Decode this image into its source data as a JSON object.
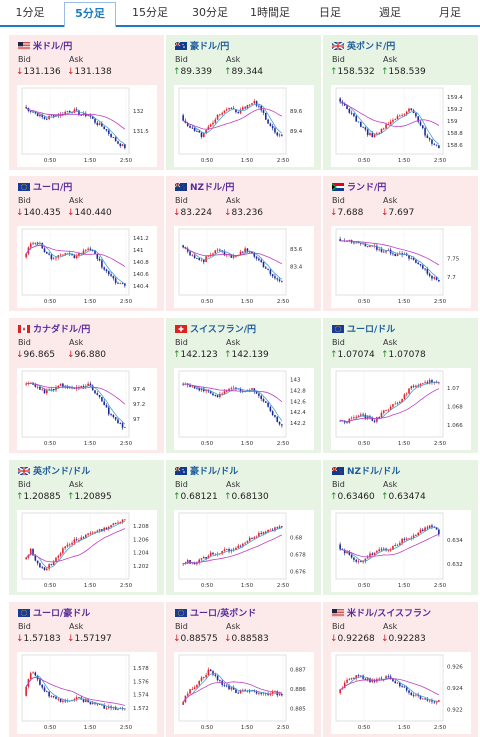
{
  "tabs": [
    {
      "label": "1分足",
      "active": false
    },
    {
      "label": "5分足",
      "active": true
    },
    {
      "label": "15分足",
      "active": false
    },
    {
      "label": "30分足",
      "active": false
    },
    {
      "label": "1時間足",
      "active": false
    },
    {
      "label": "日足",
      "active": false
    },
    {
      "label": "週足",
      "active": false
    },
    {
      "label": "月足",
      "active": false
    }
  ],
  "bid_label": "Bid",
  "ask_label": "Ask",
  "x_ticks": [
    "0:50",
    "1:50",
    "2:50"
  ],
  "colors": {
    "up": "#e0202a",
    "down": "#1a2a9a",
    "ma_short": "#4aa0d0",
    "ma_long": "#c040c0",
    "tab_accent": "#1a7dc4"
  },
  "pairs": [
    {
      "name": "米ドル/円",
      "flag": "us",
      "bg": "red",
      "bid_dir": "down",
      "bid": "131.136",
      "ask_dir": "down",
      "ask": "131.138",
      "chart_data": {
        "type": "candlestick",
        "x_ticks": [
          "0:50",
          "1:50",
          "2:50"
        ],
        "y_ticks": [
          "132",
          "131.5"
        ],
        "ylim": [
          131.0,
          132.5
        ],
        "trend": [
          132.1,
          132.0,
          131.9,
          131.8,
          131.9,
          131.9,
          132.0,
          132.0,
          131.9,
          131.9,
          131.7,
          131.6,
          131.4,
          131.2,
          131.1
        ]
      }
    },
    {
      "name": "豪ドル/円",
      "flag": "au",
      "bg": "green",
      "bid_dir": "up",
      "bid": "89.339",
      "ask_dir": "up",
      "ask": "89.344",
      "chart_data": {
        "type": "candlestick",
        "x_ticks": [
          "0:50",
          "1:50",
          "2:50"
        ],
        "y_ticks": [
          "89.6",
          "89.4"
        ],
        "ylim": [
          89.2,
          89.8
        ],
        "trend": [
          89.55,
          89.45,
          89.4,
          89.35,
          89.45,
          89.55,
          89.6,
          89.62,
          89.58,
          89.65,
          89.7,
          89.62,
          89.5,
          89.38,
          89.34
        ]
      }
    },
    {
      "name": "英ポンド/円",
      "flag": "gb",
      "bg": "green",
      "bid_dir": "up",
      "bid": "158.532",
      "ask_dir": "up",
      "ask": "158.539",
      "chart_data": {
        "type": "candlestick",
        "x_ticks": [
          "0:50",
          "1:50",
          "2:50"
        ],
        "y_ticks": [
          "159.4",
          "159.2",
          "159",
          "158.8",
          "158.6"
        ],
        "ylim": [
          158.5,
          159.5
        ],
        "trend": [
          159.35,
          159.25,
          159.1,
          158.95,
          158.8,
          158.75,
          158.85,
          158.95,
          159.05,
          159.1,
          159.2,
          159.05,
          158.8,
          158.65,
          158.55
        ]
      }
    },
    {
      "name": "ユーロ/円",
      "flag": "eu",
      "bg": "red",
      "bid_dir": "down",
      "bid": "140.435",
      "ask_dir": "down",
      "ask": "140.440",
      "chart_data": {
        "type": "candlestick",
        "x_ticks": [
          "0:50",
          "1:50",
          "2:50"
        ],
        "y_ticks": [
          "141.2",
          "141",
          "140.8",
          "140.6",
          "140.4"
        ],
        "ylim": [
          140.3,
          141.3
        ],
        "trend": [
          140.9,
          141.1,
          141.15,
          140.95,
          140.85,
          140.9,
          140.92,
          140.88,
          140.95,
          141.05,
          140.9,
          140.7,
          140.55,
          140.45,
          140.43
        ]
      }
    },
    {
      "name": "NZドル/円",
      "flag": "nz",
      "bg": "red",
      "bid_dir": "down",
      "bid": "83.224",
      "ask_dir": "down",
      "ask": "83.236",
      "chart_data": {
        "type": "candlestick",
        "x_ticks": [
          "0:50",
          "1:50",
          "2:50"
        ],
        "y_ticks": [
          "83.6",
          "83.4"
        ],
        "ylim": [
          83.1,
          83.8
        ],
        "trend": [
          83.65,
          83.55,
          83.5,
          83.45,
          83.55,
          83.58,
          83.55,
          83.52,
          83.55,
          83.6,
          83.55,
          83.45,
          83.35,
          83.25,
          83.22
        ]
      }
    },
    {
      "name": "ランド/円",
      "flag": "za",
      "bg": "red",
      "bid_dir": "down",
      "bid": "7.688",
      "ask_dir": "down",
      "ask": "7.697",
      "chart_data": {
        "type": "candlestick",
        "x_ticks": [
          "0:50",
          "1:50",
          "2:50"
        ],
        "y_ticks": [
          "7.75",
          "7.7"
        ],
        "ylim": [
          7.66,
          7.82
        ],
        "trend": [
          7.8,
          7.8,
          7.79,
          7.79,
          7.78,
          7.78,
          7.77,
          7.77,
          7.76,
          7.76,
          7.75,
          7.74,
          7.72,
          7.7,
          7.69
        ]
      }
    },
    {
      "name": "カナダドル/円",
      "flag": "ca",
      "bg": "red",
      "bid_dir": "down",
      "bid": "96.865",
      "ask_dir": "down",
      "ask": "96.880",
      "chart_data": {
        "type": "candlestick",
        "x_ticks": [
          "0:50",
          "1:50",
          "2:50"
        ],
        "y_ticks": [
          "97.4",
          "97.2",
          "97"
        ],
        "ylim": [
          96.8,
          97.6
        ],
        "trend": [
          97.45,
          97.5,
          97.4,
          97.35,
          97.4,
          97.45,
          97.42,
          97.4,
          97.42,
          97.45,
          97.35,
          97.2,
          97.05,
          96.95,
          96.87
        ]
      }
    },
    {
      "name": "スイスフラン/円",
      "flag": "ch",
      "bg": "green",
      "bid_dir": "up",
      "bid": "142.123",
      "ask_dir": "up",
      "ask": "142.139",
      "chart_data": {
        "type": "candlestick",
        "x_ticks": [
          "0:50",
          "1:50",
          "2:50"
        ],
        "y_ticks": [
          "143",
          "142.8",
          "142.6",
          "142.4",
          "142.2"
        ],
        "ylim": [
          142.0,
          143.1
        ],
        "trend": [
          142.95,
          142.9,
          142.85,
          142.8,
          142.75,
          142.7,
          142.78,
          142.85,
          142.8,
          142.78,
          142.82,
          142.7,
          142.5,
          142.3,
          142.15
        ]
      }
    },
    {
      "name": "ユーロ/ドル",
      "flag": "eu",
      "bg": "green",
      "bid_dir": "up",
      "bid": "1.07074",
      "ask_dir": "up",
      "ask": "1.07078",
      "chart_data": {
        "type": "candlestick",
        "x_ticks": [
          "0:50",
          "1:50",
          "2:50"
        ],
        "y_ticks": [
          "1.07",
          "1.068",
          "1.066"
        ],
        "ylim": [
          1.065,
          1.0715
        ],
        "trend": [
          1.0665,
          1.0662,
          1.0668,
          1.067,
          1.0668,
          1.0664,
          1.0672,
          1.0678,
          1.0682,
          1.069,
          1.07,
          1.0702,
          1.0705,
          1.0707,
          1.0707
        ]
      }
    },
    {
      "name": "英ポンド/ドル",
      "flag": "gb",
      "bg": "green",
      "bid_dir": "up",
      "bid": "1.20885",
      "ask_dir": "up",
      "ask": "1.20895",
      "chart_data": {
        "type": "candlestick",
        "x_ticks": [
          "0:50",
          "1:50",
          "2:50"
        ],
        "y_ticks": [
          "1.208",
          "1.206",
          "1.204",
          "1.202"
        ],
        "ylim": [
          1.2005,
          1.2095
        ],
        "trend": [
          1.203,
          1.2045,
          1.202,
          1.2015,
          1.2025,
          1.204,
          1.205,
          1.2058,
          1.2062,
          1.2068,
          1.2072,
          1.2075,
          1.208,
          1.2085,
          1.2088
        ]
      }
    },
    {
      "name": "豪ドル/ドル",
      "flag": "au",
      "bg": "green",
      "bid_dir": "up",
      "bid": "0.68121",
      "ask_dir": "up",
      "ask": "0.68130",
      "chart_data": {
        "type": "candlestick",
        "x_ticks": [
          "0:50",
          "1:50",
          "2:50"
        ],
        "y_ticks": [
          "0.68",
          "0.678",
          "0.676"
        ],
        "ylim": [
          0.6755,
          0.6825
        ],
        "trend": [
          0.6768,
          0.6772,
          0.677,
          0.6775,
          0.678,
          0.6782,
          0.6784,
          0.6785,
          0.679,
          0.6795,
          0.68,
          0.6805,
          0.6808,
          0.681,
          0.6812
        ]
      }
    },
    {
      "name": "NZドル/ドル",
      "flag": "nz",
      "bg": "green",
      "bid_dir": "up",
      "bid": "0.63460",
      "ask_dir": "up",
      "ask": "0.63474",
      "chart_data": {
        "type": "candlestick",
        "x_ticks": [
          "0:50",
          "1:50",
          "2:50"
        ],
        "y_ticks": [
          "0.634",
          "0.632"
        ],
        "ylim": [
          0.631,
          0.636
        ],
        "trend": [
          0.6335,
          0.633,
          0.6325,
          0.6322,
          0.6325,
          0.633,
          0.6333,
          0.6332,
          0.6336,
          0.634,
          0.6343,
          0.6345,
          0.635,
          0.6352,
          0.6346
        ]
      }
    },
    {
      "name": "ユーロ/豪ドル",
      "flag": "eu",
      "bg": "red",
      "bid_dir": "down",
      "bid": "1.57183",
      "ask_dir": "down",
      "ask": "1.57197",
      "chart_data": {
        "type": "candlestick",
        "x_ticks": [
          "0:50",
          "1:50",
          "2:50"
        ],
        "y_ticks": [
          "1.578",
          "1.576",
          "1.574",
          "1.572"
        ],
        "ylim": [
          1.5705,
          1.5795
        ],
        "trend": [
          1.574,
          1.5775,
          1.576,
          1.5745,
          1.5735,
          1.573,
          1.5732,
          1.5735,
          1.5733,
          1.5728,
          1.5725,
          1.5722,
          1.572,
          1.5718,
          1.5718
        ]
      }
    },
    {
      "name": "ユーロ/英ポンド",
      "flag": "eu",
      "bg": "red",
      "bid_dir": "down",
      "bid": "0.88575",
      "ask_dir": "down",
      "ask": "0.88583",
      "chart_data": {
        "type": "candlestick",
        "x_ticks": [
          "0:50",
          "1:50",
          "2:50"
        ],
        "y_ticks": [
          "0.887",
          "0.886",
          "0.885"
        ],
        "ylim": [
          0.8845,
          0.8876
        ],
        "trend": [
          0.8852,
          0.8858,
          0.8862,
          0.8866,
          0.887,
          0.8865,
          0.8862,
          0.886,
          0.8858,
          0.886,
          0.8859,
          0.8858,
          0.8857,
          0.8858,
          0.8857
        ]
      }
    },
    {
      "name": "米ドル/スイスフラン",
      "flag": "us",
      "bg": "red",
      "bid_dir": "down",
      "bid": "0.92268",
      "ask_dir": "down",
      "ask": "0.92283",
      "chart_data": {
        "type": "candlestick",
        "x_ticks": [
          "0:50",
          "1:50",
          "2:50"
        ],
        "y_ticks": [
          "0.926",
          "0.924",
          "0.922"
        ],
        "ylim": [
          0.9212,
          0.9268
        ],
        "trend": [
          0.9235,
          0.9245,
          0.925,
          0.9252,
          0.9248,
          0.9246,
          0.9248,
          0.925,
          0.9245,
          0.924,
          0.9235,
          0.9232,
          0.923,
          0.9228,
          0.9227
        ]
      }
    }
  ]
}
